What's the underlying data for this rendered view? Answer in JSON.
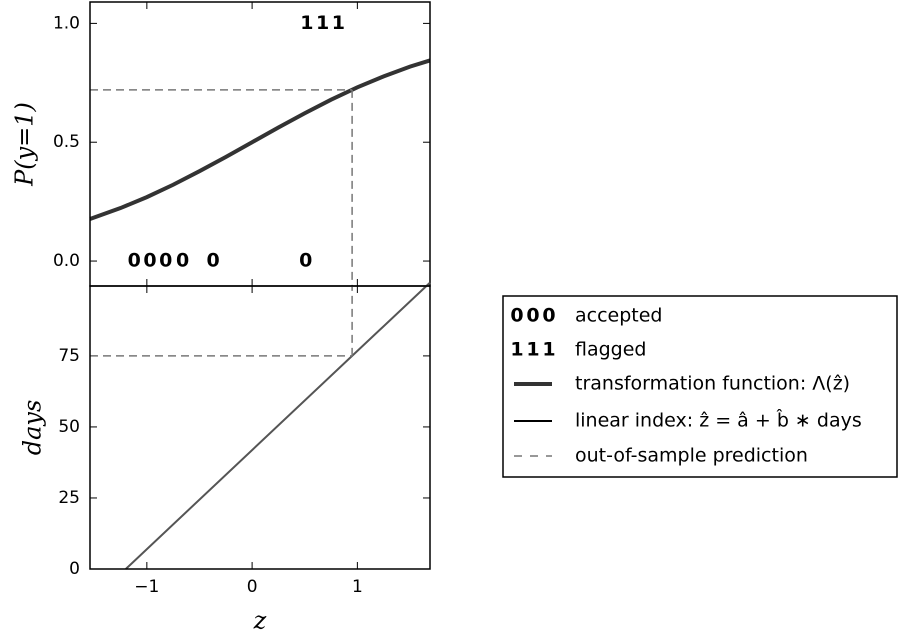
{
  "chart_data": [
    {
      "type": "line",
      "ylabel": "P(y=1)",
      "xlim": [
        -1.54,
        1.69
      ],
      "ylim": [
        -0.105,
        1.09
      ],
      "yticks": [
        {
          "value": 0,
          "label": "0.0"
        },
        0.5,
        {
          "value": 1,
          "label": "1.0"
        }
      ],
      "series": [
        {
          "name": "transformation function: Λ(ẑ)",
          "color": "#333333",
          "x": [
            -1.54,
            -1.25,
            -1.0,
            -0.75,
            -0.5,
            -0.25,
            0,
            0.25,
            0.5,
            0.75,
            1.0,
            1.25,
            1.5,
            1.69
          ],
          "values": [
            0.177,
            0.223,
            0.269,
            0.321,
            0.378,
            0.438,
            0.5,
            0.562,
            0.622,
            0.679,
            0.731,
            0.777,
            0.818,
            0.844
          ]
        },
        {
          "name": "accepted",
          "marker": "0",
          "color": "#3a7fc0",
          "x": [
            -1.12,
            -0.97,
            -0.82,
            -0.66,
            -0.37,
            0.51
          ],
          "values": [
            0,
            0,
            0,
            0,
            0,
            0
          ]
        },
        {
          "name": "flagged",
          "marker": "1",
          "color": "#d62728",
          "x": [
            0.52,
            0.67,
            0.82
          ],
          "values": [
            1,
            1,
            1
          ]
        }
      ],
      "prediction": {
        "name": "out-of-sample prediction",
        "x": 0.95,
        "y": 0.72
      }
    },
    {
      "type": "line",
      "xlabel": "z",
      "ylabel": "days",
      "xlim": [
        -1.54,
        1.69
      ],
      "ylim": [
        0,
        99.6
      ],
      "xticks": [
        {
          "value": -1,
          "label": "−1"
        },
        0,
        1
      ],
      "yticks": [
        0,
        25,
        50,
        75
      ],
      "series": [
        {
          "name": "linear index: ẑ = â + b̂ ∗ days",
          "color": "#555555",
          "x": [
            -1.2,
            0.95,
            1.69
          ],
          "values": [
            0,
            75,
            100.8
          ]
        }
      ],
      "prediction": {
        "x": 0.95,
        "y": 75
      }
    }
  ]
}
